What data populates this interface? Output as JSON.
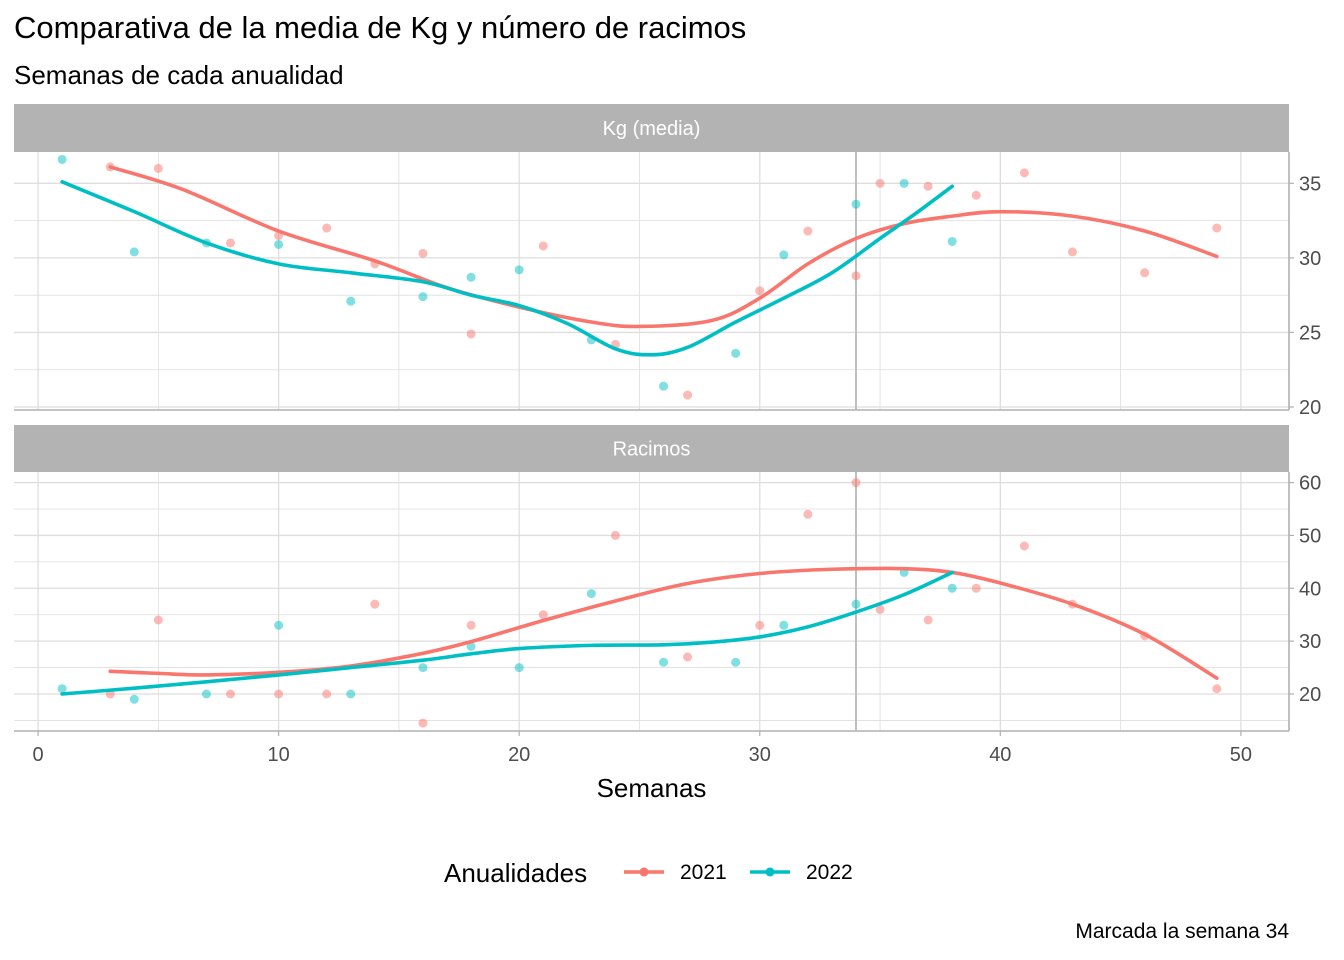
{
  "title": "Comparativa de la media de Kg y número de racimos",
  "subtitle": "Semanas de cada anualidad",
  "caption": "Marcada la semana 34",
  "colors": {
    "2021": "#F8766D",
    "2022": "#00BFC4",
    "strip": "#B3B3B3",
    "grid": "#DEDEDE",
    "vline": "#BEBEBE"
  },
  "chart_data": {
    "type": "scatter",
    "xlabel": "Semanas",
    "xlim": [
      -1,
      52
    ],
    "x_ticks": [
      0,
      10,
      20,
      30,
      40,
      50
    ],
    "marked_week": 34,
    "legend": {
      "title": "Anualidades",
      "position": "bottom",
      "entries": [
        "2021",
        "2022"
      ]
    },
    "grid": true,
    "panels": [
      {
        "label": "Kg (media)",
        "ylim": [
          19.8,
          37.1
        ],
        "y_ticks": [
          20,
          25,
          30,
          35
        ],
        "series": [
          {
            "name": "2021",
            "points": [
              [
                3,
                36.1
              ],
              [
                5,
                36.0
              ],
              [
                8,
                31.0
              ],
              [
                10,
                31.5
              ],
              [
                12,
                32.0
              ],
              [
                14,
                29.6
              ],
              [
                16,
                30.3
              ],
              [
                18,
                24.9
              ],
              [
                21,
                30.8
              ],
              [
                24,
                24.2
              ],
              [
                27,
                20.8
              ],
              [
                30,
                27.8
              ],
              [
                32,
                31.8
              ],
              [
                34,
                28.8
              ],
              [
                35,
                35.0
              ],
              [
                37,
                34.8
              ],
              [
                39,
                34.2
              ],
              [
                41,
                35.7
              ],
              [
                43,
                30.4
              ],
              [
                46,
                29.0
              ],
              [
                49,
                32.0
              ]
            ],
            "smooth": [
              [
                3,
                36.1
              ],
              [
                6,
                34.6
              ],
              [
                10,
                31.8
              ],
              [
                14,
                29.8
              ],
              [
                17,
                28.0
              ],
              [
                20,
                26.7
              ],
              [
                23,
                25.7
              ],
              [
                25,
                25.4
              ],
              [
                28,
                25.8
              ],
              [
                30,
                27.3
              ],
              [
                32,
                29.6
              ],
              [
                34,
                31.3
              ],
              [
                36,
                32.3
              ],
              [
                38,
                32.8
              ],
              [
                40,
                33.1
              ],
              [
                43,
                32.8
              ],
              [
                46,
                31.8
              ],
              [
                49,
                30.1
              ]
            ]
          },
          {
            "name": "2022",
            "points": [
              [
                1,
                36.6
              ],
              [
                4,
                30.4
              ],
              [
                7,
                31.0
              ],
              [
                10,
                30.9
              ],
              [
                13,
                27.1
              ],
              [
                16,
                27.4
              ],
              [
                18,
                28.7
              ],
              [
                20,
                29.2
              ],
              [
                23,
                24.5
              ],
              [
                26,
                21.4
              ],
              [
                29,
                23.6
              ],
              [
                31,
                30.2
              ],
              [
                34,
                33.6
              ],
              [
                36,
                35.0
              ],
              [
                38,
                31.1
              ]
            ],
            "smooth": [
              [
                1,
                35.1
              ],
              [
                4,
                33.1
              ],
              [
                7,
                31.0
              ],
              [
                10,
                29.6
              ],
              [
                13,
                29.0
              ],
              [
                16,
                28.4
              ],
              [
                18,
                27.5
              ],
              [
                20,
                26.8
              ],
              [
                22,
                25.6
              ],
              [
                24,
                23.9
              ],
              [
                25.5,
                23.5
              ],
              [
                27,
                24.0
              ],
              [
                29,
                25.7
              ],
              [
                31,
                27.3
              ],
              [
                33,
                29.0
              ],
              [
                35,
                31.3
              ],
              [
                36.5,
                33.0
              ],
              [
                38,
                34.8
              ]
            ]
          }
        ]
      },
      {
        "label": "Racimos",
        "ylim": [
          13,
          62
        ],
        "y_ticks": [
          20,
          30,
          40,
          50,
          60
        ],
        "series": [
          {
            "name": "2021",
            "points": [
              [
                3,
                20
              ],
              [
                5,
                34
              ],
              [
                8,
                20
              ],
              [
                10,
                20
              ],
              [
                12,
                20
              ],
              [
                14,
                37
              ],
              [
                16,
                14.5
              ],
              [
                18,
                33
              ],
              [
                21,
                35
              ],
              [
                24,
                50
              ],
              [
                27,
                27
              ],
              [
                30,
                33
              ],
              [
                32,
                54
              ],
              [
                34,
                60
              ],
              [
                35,
                36
              ],
              [
                37,
                34
              ],
              [
                39,
                40
              ],
              [
                41,
                48
              ],
              [
                43,
                37
              ],
              [
                46,
                31
              ],
              [
                49,
                21
              ]
            ],
            "smooth": [
              [
                3,
                24.3
              ],
              [
                5,
                23.9
              ],
              [
                7,
                23.6
              ],
              [
                10,
                24.1
              ],
              [
                13,
                25.3
              ],
              [
                16,
                27.7
              ],
              [
                18,
                29.9
              ],
              [
                21,
                33.9
              ],
              [
                24,
                37.6
              ],
              [
                27,
                40.9
              ],
              [
                30,
                42.8
              ],
              [
                33,
                43.6
              ],
              [
                36,
                43.7
              ],
              [
                38,
                43.0
              ],
              [
                40,
                41.0
              ],
              [
                43,
                37.0
              ],
              [
                46,
                31.3
              ],
              [
                49,
                23.0
              ]
            ]
          },
          {
            "name": "2022",
            "points": [
              [
                1,
                21
              ],
              [
                4,
                19
              ],
              [
                7,
                20
              ],
              [
                10,
                33
              ],
              [
                13,
                20
              ],
              [
                16,
                25
              ],
              [
                18,
                29
              ],
              [
                20,
                25
              ],
              [
                23,
                39
              ],
              [
                26,
                26
              ],
              [
                29,
                26
              ],
              [
                31,
                33
              ],
              [
                34,
                37
              ],
              [
                36,
                43
              ],
              [
                38,
                40
              ]
            ],
            "smooth": [
              [
                1,
                20.0
              ],
              [
                4,
                21.1
              ],
              [
                7,
                22.3
              ],
              [
                10,
                23.6
              ],
              [
                13,
                25.0
              ],
              [
                16,
                26.4
              ],
              [
                18,
                27.6
              ],
              [
                20,
                28.6
              ],
              [
                23,
                29.2
              ],
              [
                26,
                29.3
              ],
              [
                28,
                29.8
              ],
              [
                30,
                30.8
              ],
              [
                32,
                32.7
              ],
              [
                34,
                35.5
              ],
              [
                36,
                38.8
              ],
              [
                38,
                43.0
              ]
            ]
          }
        ]
      }
    ]
  }
}
